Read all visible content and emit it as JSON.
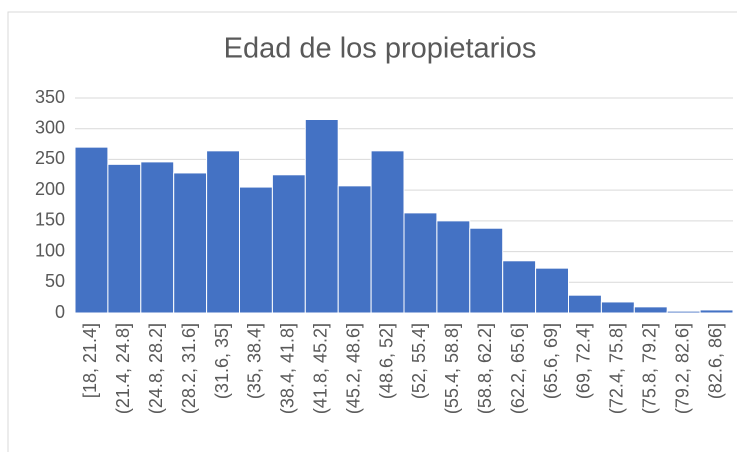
{
  "chart_data": {
    "type": "bar",
    "title": "Edad de los propietarios",
    "categories": [
      "[18, 21.4]",
      "(21.4, 24.8]",
      "(24.8, 28.2]",
      "(28.2, 31.6]",
      "(31.6, 35]",
      "(35, 38.4]",
      "(38.4, 41.8]",
      "(41.8, 45.2]",
      "(45.2, 48.6]",
      "(48.6, 52]",
      "(52, 55.4]",
      "(55.4, 58.8]",
      "(58.8, 62.2]",
      "(62.2, 65.6]",
      "(65.6, 69]",
      "(69, 72.4]",
      "(72.4, 75.8]",
      "(75.8, 79.2]",
      "(79.2, 82.6]",
      "(82.6, 86]"
    ],
    "values": [
      270,
      242,
      246,
      228,
      264,
      205,
      225,
      315,
      207,
      264,
      163,
      150,
      138,
      85,
      73,
      29,
      18,
      10,
      3,
      5
    ],
    "color": "#4472c4",
    "ylim": [
      0,
      350
    ],
    "yticks": [
      0,
      50,
      100,
      150,
      200,
      250,
      300,
      350
    ],
    "grid": true
  }
}
